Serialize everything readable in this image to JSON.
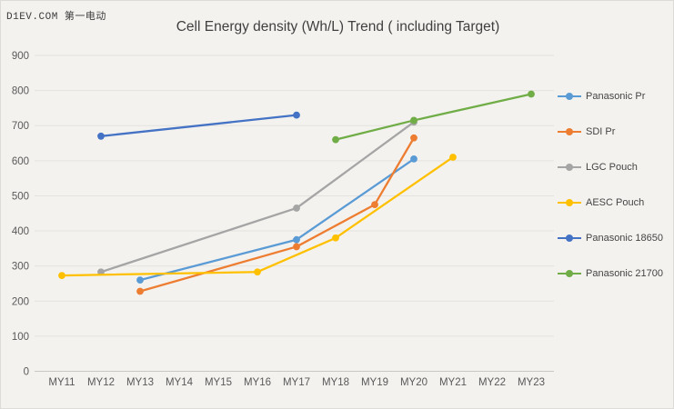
{
  "watermark": "D1EV.COM 第一电动",
  "chart_data": {
    "type": "line",
    "title": "Cell Energy density (Wh/L) Trend ( including Target)",
    "xlabel": "",
    "ylabel": "",
    "categories": [
      "MY11",
      "MY12",
      "MY13",
      "MY14",
      "MY15",
      "MY16",
      "MY17",
      "MY18",
      "MY19",
      "MY20",
      "MY21",
      "MY22",
      "MY23"
    ],
    "ylim": [
      0,
      900
    ],
    "ytick_step": 100,
    "grid": true,
    "legend_position": "right",
    "series": [
      {
        "name": "Panasonic Pr",
        "color": "#5B9BD5",
        "points": {
          "MY13": 260,
          "MY17": 375,
          "MY20": 605
        }
      },
      {
        "name": "SDI Pr",
        "color": "#ED7D31",
        "points": {
          "MY13": 228,
          "MY17": 355,
          "MY19": 475,
          "MY20": 665
        }
      },
      {
        "name": "LGC Pouch",
        "color": "#A5A5A5",
        "points": {
          "MY12": 283,
          "MY17": 465,
          "MY20": 710
        }
      },
      {
        "name": "AESC Pouch",
        "color": "#FFC000",
        "points": {
          "MY11": 273,
          "MY16": 283,
          "MY18": 380,
          "MY21": 610
        }
      },
      {
        "name": "Panasonic 18650",
        "color": "#4472C4",
        "points": {
          "MY12": 670,
          "MY17": 730
        }
      },
      {
        "name": "Panasonic 21700",
        "color": "#70AD47",
        "points": {
          "MY18": 660,
          "MY20": 715,
          "MY23": 790
        }
      }
    ]
  }
}
